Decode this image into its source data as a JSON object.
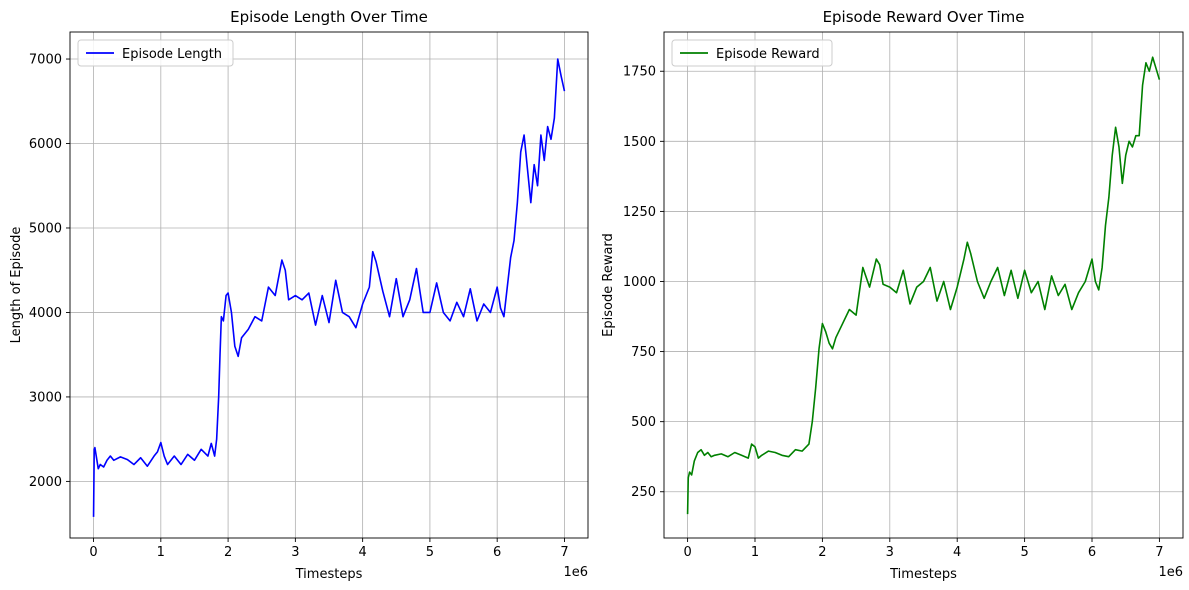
{
  "chart_data": [
    {
      "type": "line",
      "title": "Episode Length Over Time",
      "xlabel": "Timesteps",
      "ylabel": "Length of Episode",
      "x_offset_text": "1e6",
      "xlim": [
        -0.35,
        7.35
      ],
      "ylim": [
        1330,
        7320
      ],
      "x_ticks": [
        0,
        1,
        2,
        3,
        4,
        5,
        6,
        7
      ],
      "x_tick_labels": [
        "0",
        "1",
        "2",
        "3",
        "4",
        "5",
        "6",
        "7"
      ],
      "y_ticks": [
        2000,
        3000,
        4000,
        5000,
        6000,
        7000
      ],
      "y_tick_labels": [
        "2000",
        "3000",
        "4000",
        "5000",
        "6000",
        "7000"
      ],
      "grid": true,
      "legend": "upper-left",
      "series": [
        {
          "name": "Episode Length",
          "color": "#0000ff",
          "x": [
            0,
            0.01,
            0.02,
            0.04,
            0.07,
            0.1,
            0.15,
            0.2,
            0.25,
            0.3,
            0.4,
            0.5,
            0.6,
            0.7,
            0.8,
            0.9,
            0.95,
            1.0,
            1.05,
            1.1,
            1.2,
            1.3,
            1.4,
            1.5,
            1.6,
            1.7,
            1.75,
            1.8,
            1.83,
            1.86,
            1.88,
            1.9,
            1.93,
            1.97,
            2.0,
            2.05,
            2.1,
            2.15,
            2.2,
            2.3,
            2.4,
            2.5,
            2.6,
            2.7,
            2.8,
            2.85,
            2.9,
            3.0,
            3.1,
            3.2,
            3.3,
            3.4,
            3.5,
            3.6,
            3.7,
            3.8,
            3.9,
            4.0,
            4.1,
            4.15,
            4.2,
            4.3,
            4.4,
            4.5,
            4.6,
            4.7,
            4.8,
            4.9,
            5.0,
            5.1,
            5.2,
            5.3,
            5.4,
            5.5,
            5.6,
            5.7,
            5.8,
            5.9,
            6.0,
            6.05,
            6.1,
            6.15,
            6.2,
            6.25,
            6.3,
            6.35,
            6.4,
            6.45,
            6.5,
            6.55,
            6.6,
            6.65,
            6.7,
            6.75,
            6.8,
            6.85,
            6.9,
            6.95,
            7.0
          ],
          "values": [
            1580,
            2380,
            2400,
            2300,
            2150,
            2200,
            2170,
            2250,
            2300,
            2250,
            2290,
            2260,
            2200,
            2280,
            2180,
            2300,
            2350,
            2460,
            2300,
            2200,
            2300,
            2200,
            2320,
            2250,
            2380,
            2300,
            2450,
            2300,
            2500,
            3000,
            3500,
            3950,
            3900,
            4200,
            4230,
            4000,
            3600,
            3480,
            3700,
            3800,
            3950,
            3900,
            4300,
            4200,
            4620,
            4500,
            4150,
            4200,
            4150,
            4230,
            3850,
            4200,
            3880,
            4380,
            4000,
            3950,
            3820,
            4100,
            4300,
            4720,
            4600,
            4250,
            3950,
            4400,
            3950,
            4150,
            4520,
            4000,
            4000,
            4350,
            4000,
            3900,
            4120,
            3950,
            4280,
            3900,
            4100,
            4000,
            4300,
            4050,
            3950,
            4300,
            4650,
            4850,
            5300,
            5900,
            6100,
            5700,
            5300,
            5750,
            5500,
            6100,
            5800,
            6200,
            6050,
            6300,
            7000,
            6800,
            6620
          ]
        }
      ]
    },
    {
      "type": "line",
      "title": "Episode Reward Over Time",
      "xlabel": "Timesteps",
      "ylabel": "Episode Reward",
      "x_offset_text": "1e6",
      "xlim": [
        -0.35,
        7.35
      ],
      "ylim": [
        85,
        1890
      ],
      "x_ticks": [
        0,
        1,
        2,
        3,
        4,
        5,
        6,
        7
      ],
      "x_tick_labels": [
        "0",
        "1",
        "2",
        "3",
        "4",
        "5",
        "6",
        "7"
      ],
      "y_ticks": [
        250,
        500,
        750,
        1000,
        1250,
        1500,
        1750
      ],
      "y_tick_labels": [
        "250",
        "500",
        "750",
        "1000",
        "1250",
        "1500",
        "1750"
      ],
      "grid": true,
      "legend": "upper-left",
      "series": [
        {
          "name": "Episode Reward",
          "color": "#008000",
          "x": [
            0,
            0.01,
            0.03,
            0.06,
            0.1,
            0.15,
            0.2,
            0.25,
            0.3,
            0.35,
            0.4,
            0.5,
            0.6,
            0.7,
            0.8,
            0.9,
            0.95,
            1.0,
            1.05,
            1.1,
            1.2,
            1.3,
            1.4,
            1.5,
            1.6,
            1.7,
            1.8,
            1.85,
            1.9,
            1.95,
            2.0,
            2.05,
            2.1,
            2.15,
            2.2,
            2.3,
            2.4,
            2.5,
            2.6,
            2.7,
            2.8,
            2.85,
            2.9,
            3.0,
            3.1,
            3.2,
            3.3,
            3.4,
            3.5,
            3.6,
            3.7,
            3.8,
            3.9,
            4.0,
            4.1,
            4.15,
            4.2,
            4.3,
            4.4,
            4.5,
            4.6,
            4.7,
            4.8,
            4.9,
            5.0,
            5.1,
            5.2,
            5.3,
            5.4,
            5.5,
            5.6,
            5.7,
            5.8,
            5.9,
            6.0,
            6.05,
            6.1,
            6.15,
            6.2,
            6.25,
            6.3,
            6.35,
            6.4,
            6.45,
            6.5,
            6.55,
            6.6,
            6.65,
            6.7,
            6.75,
            6.8,
            6.85,
            6.9,
            6.95,
            7.0
          ],
          "values": [
            170,
            300,
            320,
            310,
            360,
            390,
            400,
            380,
            390,
            375,
            380,
            385,
            375,
            390,
            380,
            370,
            420,
            410,
            370,
            380,
            395,
            390,
            380,
            375,
            400,
            395,
            420,
            500,
            620,
            760,
            850,
            820,
            780,
            760,
            800,
            850,
            900,
            880,
            1050,
            980,
            1080,
            1060,
            990,
            980,
            960,
            1040,
            920,
            980,
            1000,
            1050,
            930,
            1000,
            900,
            980,
            1080,
            1140,
            1100,
            1000,
            940,
            1000,
            1050,
            950,
            1040,
            940,
            1040,
            960,
            1000,
            900,
            1020,
            950,
            990,
            900,
            960,
            1000,
            1080,
            1000,
            970,
            1050,
            1200,
            1300,
            1450,
            1550,
            1480,
            1350,
            1450,
            1500,
            1480,
            1520,
            1520,
            1700,
            1780,
            1750,
            1800,
            1760,
            1720
          ]
        }
      ]
    }
  ]
}
